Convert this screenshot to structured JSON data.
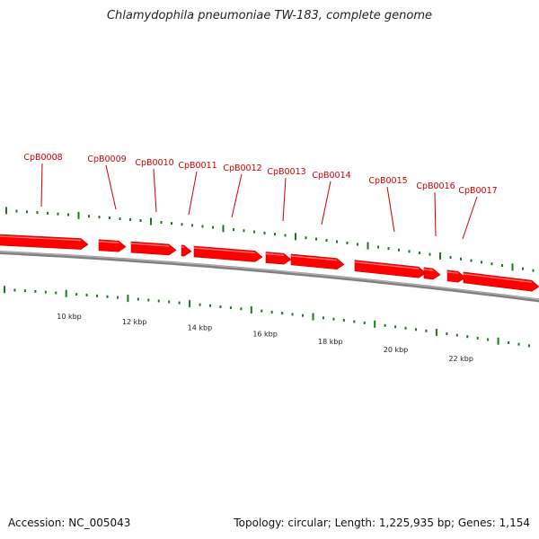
{
  "title": "Chlamydophila pneumoniae TW-183, complete genome",
  "footer": {
    "accession": "Accession: NC_005043",
    "stats": "Topology: circular; Length: 1,225,935 bp; Genes: 1,154"
  },
  "colors": {
    "gene_fill": "#ff0000",
    "gene_stroke": "#cc0000",
    "label": "#cc0000",
    "tick": "#1a7a1a",
    "backbone": "#808080"
  },
  "ruler": [
    {
      "kbp": 10,
      "label": "10 kbp"
    },
    {
      "kbp": 12,
      "label": "12 kbp"
    },
    {
      "kbp": 14,
      "label": "14 kbp"
    },
    {
      "kbp": 16,
      "label": "16 kbp"
    },
    {
      "kbp": 18,
      "label": "18 kbp"
    },
    {
      "kbp": 20,
      "label": "20 kbp"
    },
    {
      "kbp": 22,
      "label": "22 kbp"
    }
  ],
  "genes": [
    {
      "label": "CpB0008"
    },
    {
      "label": "CpB0009"
    },
    {
      "label": "CpB0010"
    },
    {
      "label": "CpB0011"
    },
    {
      "label": "CpB0012"
    },
    {
      "label": "CpB0013"
    },
    {
      "label": "CpB0014"
    },
    {
      "label": "CpB0015"
    },
    {
      "label": "CpB0016"
    },
    {
      "label": "CpB0017"
    }
  ]
}
